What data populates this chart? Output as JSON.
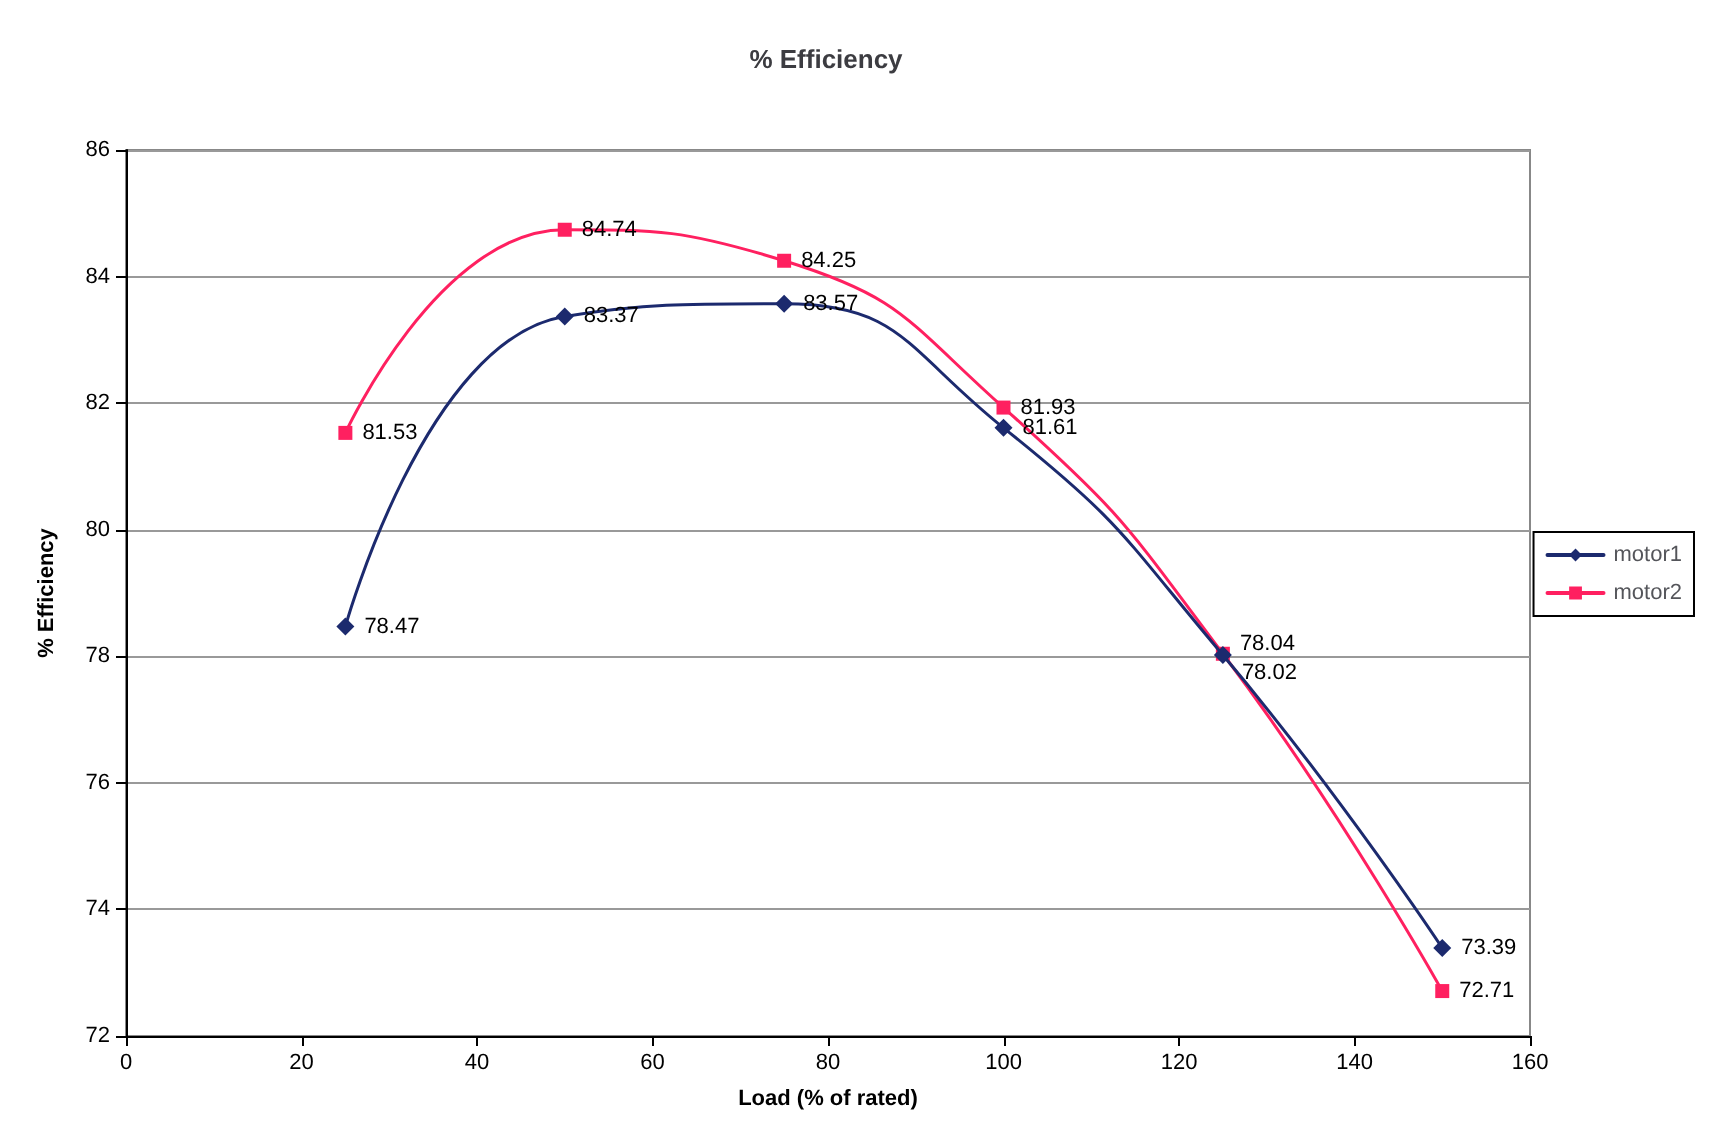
{
  "chart_data": {
    "type": "line",
    "title": "% Efficiency",
    "xlabel": "Load (% of rated)",
    "ylabel": "% Efficiency",
    "x": [
      25,
      50,
      75,
      100,
      125,
      150
    ],
    "series": [
      {
        "name": "motor1",
        "color": "#1c2a6e",
        "marker": "diamond",
        "values": [
          78.47,
          83.37,
          83.57,
          81.61,
          78.02,
          73.39
        ]
      },
      {
        "name": "motor2",
        "color": "#ff2060",
        "marker": "square",
        "values": [
          81.53,
          84.74,
          84.25,
          81.93,
          78.04,
          72.71
        ]
      }
    ],
    "xlim": [
      0,
      160
    ],
    "xticks": [
      0,
      20,
      40,
      60,
      80,
      100,
      120,
      140,
      160
    ],
    "ylim": [
      72,
      86
    ],
    "yticks": [
      72,
      74,
      76,
      78,
      80,
      82,
      84,
      86
    ],
    "grid": "y",
    "legend": "right",
    "data_labels": true
  }
}
